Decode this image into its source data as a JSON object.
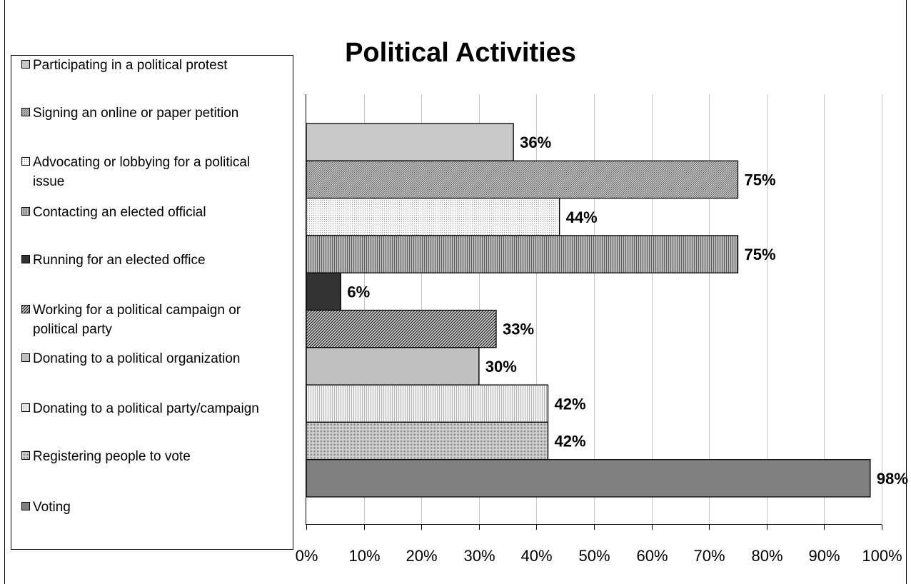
{
  "chart_data": {
    "type": "bar",
    "orientation": "horizontal",
    "title": "Political Activities",
    "categories": [
      "Participating in a political protest",
      "Signing an online or paper petition",
      "Advocating or lobbying for a political issue",
      "Contacting an elected official",
      "Running for an elected office",
      "Working for a political campaign or political party",
      "Donating to a political organization",
      "Donating to a political party/campaign",
      "Registering people to vote",
      "Voting"
    ],
    "legend_lines": [
      [
        "Participating in a political protest"
      ],
      [
        "Signing an online or paper petition"
      ],
      [
        "Advocating or lobbying for a political",
        "issue"
      ],
      [
        "Contacting an elected official"
      ],
      [
        "Running for an elected office"
      ],
      [
        "Working for a political campaign or",
        "political party"
      ],
      [
        "Donating to a political organization"
      ],
      [
        "Donating to a political party/campaign"
      ],
      [
        "Registering people to vote"
      ],
      [
        "Voting"
      ]
    ],
    "values": [
      0.36,
      0.75,
      0.44,
      0.75,
      0.06,
      0.33,
      0.3,
      0.42,
      0.42,
      0.98
    ],
    "data_labels": [
      "36%",
      "75%",
      "44%",
      "75%",
      "6%",
      "33%",
      "30%",
      "42%",
      "42%",
      "98%"
    ],
    "xlim": [
      0,
      1
    ],
    "xticks": [
      "0%",
      "10%",
      "20%",
      "30%",
      "40%",
      "50%",
      "60%",
      "70%",
      "80%",
      "90%",
      "100%"
    ],
    "grid": true,
    "legend": "left",
    "styles": [
      {
        "fill": "#c8c8c8",
        "pattern": "none"
      },
      {
        "fill": "#c8c8c8",
        "pattern": "diag-dense"
      },
      {
        "fill": "#f4f4f4",
        "pattern": "dots"
      },
      {
        "fill": "#a8a8a8",
        "pattern": "vlines"
      },
      {
        "fill": "#333333",
        "pattern": "none"
      },
      {
        "fill": "#d0d0d0",
        "pattern": "diag-bold"
      },
      {
        "fill": "#c0c0c0",
        "pattern": "none"
      },
      {
        "fill": "#eeeeee",
        "pattern": "vlines-light"
      },
      {
        "fill": "#c4c4c4",
        "pattern": "dots-dense"
      },
      {
        "fill": "#808080",
        "pattern": "none"
      }
    ]
  }
}
